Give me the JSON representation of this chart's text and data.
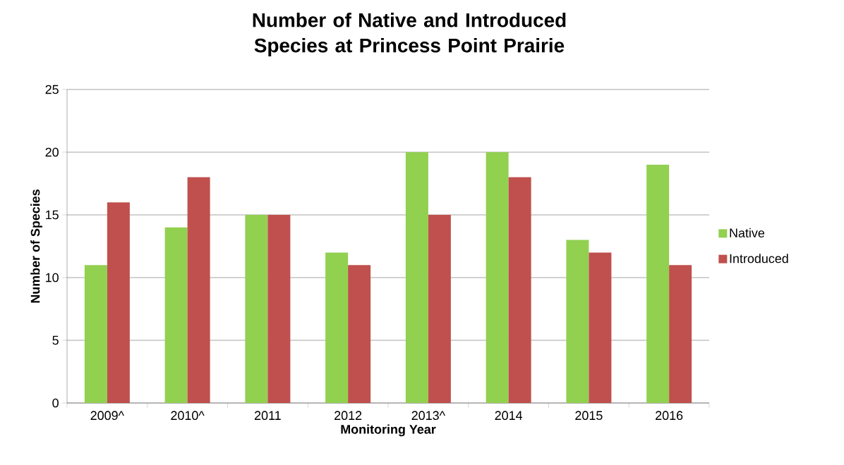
{
  "chart_data": {
    "type": "bar",
    "title": "Number of Native and Introduced Species at Princess Point Prairie",
    "xlabel": "Monitoring Year",
    "ylabel": "Number of Species",
    "categories": [
      "2009^",
      "2010^",
      "2011",
      "2012",
      "2013^",
      "2014",
      "2015",
      "2016"
    ],
    "series": [
      {
        "name": "Native",
        "color": "#92d050",
        "values": [
          11,
          14,
          15,
          12,
          20,
          20,
          13,
          19
        ]
      },
      {
        "name": "Introduced",
        "color": "#c0504d",
        "values": [
          16,
          18,
          15,
          11,
          15,
          18,
          12,
          11
        ]
      }
    ],
    "ylim": [
      0,
      25
    ],
    "yticks": [
      0,
      5,
      10,
      15,
      20,
      25
    ],
    "grid": "y",
    "legend": "right"
  }
}
